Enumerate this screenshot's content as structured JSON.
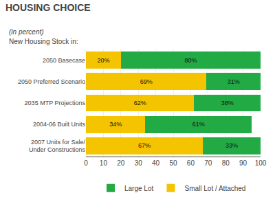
{
  "chart_data": {
    "type": "bar",
    "orientation": "horizontal",
    "stacked": true,
    "title": "HOUSING CHOICE",
    "subtitle": "(in percent)",
    "annotations": [
      "New Housing Stock in:"
    ],
    "categories": [
      "2050 Basecase",
      "2050 Preferred Scenario",
      "2035 MTP Projections",
      "2004-06 Built Units",
      "2007 Units for Sale/\nUnder Constructions"
    ],
    "series": [
      {
        "name": "Small Lot / Attached",
        "color": "#F5C400",
        "values": [
          20,
          69,
          62,
          34,
          67
        ],
        "value_labels": [
          "20%",
          "69%",
          "62%",
          "34%",
          "67%"
        ]
      },
      {
        "name": "Large Lot",
        "color": "#22AA44",
        "values": [
          80,
          31,
          38,
          61,
          33
        ],
        "value_labels": [
          "80%",
          "31%",
          "38%",
          "61%",
          "33%"
        ]
      }
    ],
    "xlim": [
      0,
      100
    ],
    "xticks": [
      0,
      10,
      20,
      30,
      40,
      50,
      60,
      70,
      80,
      90,
      100
    ],
    "grid": true,
    "data_labels": true
  }
}
